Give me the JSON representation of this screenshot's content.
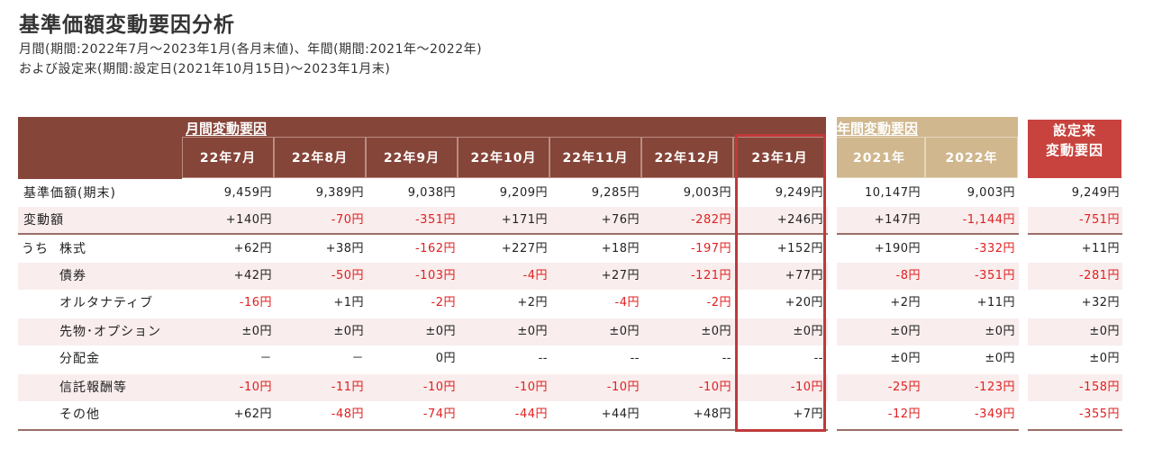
{
  "title": "基準価額変動要因分析",
  "subtitle_line1": "月間(期間:2022年7月～2023年1月(各月末値)、年間(期間:2021年～2022年)",
  "subtitle_line2": "および設定来(期間:設定日(2021年10月15日)～2023年1月末)",
  "headers": {
    "monthly_group": "月間変動要因",
    "yearly_group": "年間変動要因",
    "since_inception_line1": "設定来",
    "since_inception_line2": "変動要因",
    "columns": [
      "22年7月",
      "22年8月",
      "22年9月",
      "22年10月",
      "22年11月",
      "22年12月",
      "23年1月",
      "2021年",
      "2022年"
    ]
  },
  "rows": [
    {
      "prefix": "",
      "label": "基準価額(期末)",
      "values": [
        "9,459円",
        "9,389円",
        "9,038円",
        "9,209円",
        "9,285円",
        "9,003円",
        "9,249円",
        "10,147円",
        "9,003円",
        "9,249円"
      ]
    },
    {
      "prefix": "",
      "label": "変動額",
      "values": [
        "+140円",
        "-70円",
        "-351円",
        "+171円",
        "+76円",
        "-282円",
        "+246円",
        "+147円",
        "-1,144円",
        "-751円"
      ]
    },
    {
      "prefix": "うち",
      "label": "株式",
      "values": [
        "+62円",
        "+38円",
        "-162円",
        "+227円",
        "+18円",
        "-197円",
        "+152円",
        "+190円",
        "-332円",
        "+11円"
      ]
    },
    {
      "prefix": "",
      "label": "債券",
      "values": [
        "+42円",
        "-50円",
        "-103円",
        "-4円",
        "+27円",
        "-121円",
        "+77円",
        "-8円",
        "-351円",
        "-281円"
      ]
    },
    {
      "prefix": "",
      "label": "オルタナティブ",
      "values": [
        "-16円",
        "+1円",
        "-2円",
        "+2円",
        "-4円",
        "-2円",
        "+20円",
        "+2円",
        "+11円",
        "+32円"
      ]
    },
    {
      "prefix": "",
      "label": "先物･オプション",
      "values": [
        "±0円",
        "±0円",
        "±0円",
        "±0円",
        "±0円",
        "±0円",
        "±0円",
        "±0円",
        "±0円",
        "±0円"
      ]
    },
    {
      "prefix": "",
      "label": "分配金",
      "values": [
        "－",
        "－",
        "0円",
        "--",
        "--",
        "--",
        "--",
        "±0円",
        "±0円",
        "±0円"
      ]
    },
    {
      "prefix": "",
      "label": "信託報酬等",
      "values": [
        "-10円",
        "-11円",
        "-10円",
        "-10円",
        "-10円",
        "-10円",
        "-10円",
        "-25円",
        "-123円",
        "-158円"
      ]
    },
    {
      "prefix": "",
      "label": "その他",
      "values": [
        "+62円",
        "-48円",
        "-74円",
        "-44円",
        "+44円",
        "+48円",
        "+7円",
        "-12円",
        "-349円",
        "-355円"
      ]
    }
  ],
  "colors": {
    "monthly_header": "#864539",
    "yearly_header": "#d0b78e",
    "since_header": "#c8433d",
    "negative_text": "#e02020",
    "row_shade": "#f9eded",
    "highlight_border": "#c0393b"
  }
}
